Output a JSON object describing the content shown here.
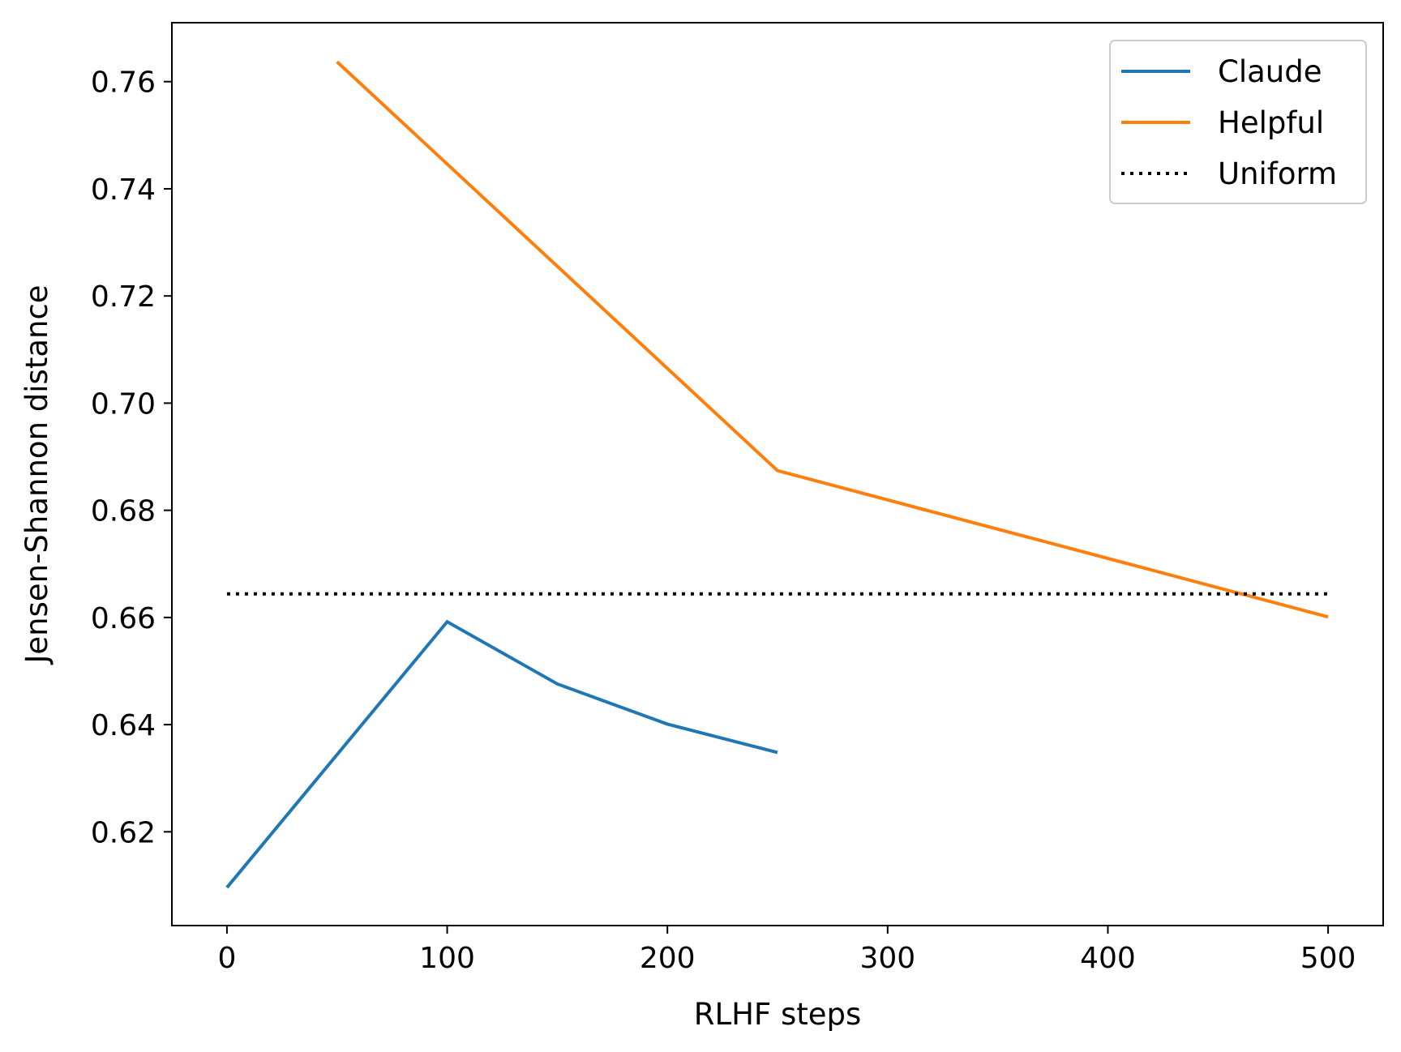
{
  "chart_data": {
    "type": "line",
    "title": "",
    "xlabel": "RLHF steps",
    "ylabel": "Jensen-Shannon distance",
    "xlim": [
      -25,
      525
    ],
    "ylim": [
      0.6025,
      0.771
    ],
    "xticks": [
      0,
      100,
      200,
      300,
      400,
      500
    ],
    "xtick_labels": [
      "0",
      "100",
      "200",
      "300",
      "400",
      "500"
    ],
    "yticks": [
      0.62,
      0.64,
      0.66,
      0.68,
      0.7,
      0.72,
      0.74,
      0.76
    ],
    "ytick_labels": [
      "0.62",
      "0.64",
      "0.66",
      "0.68",
      "0.70",
      "0.72",
      "0.74",
      "0.76"
    ],
    "grid": false,
    "legend_position": "top-right",
    "series": [
      {
        "name": "Claude",
        "color": "#1f77b4",
        "style": "solid",
        "x": [
          0,
          100,
          150,
          200,
          250
        ],
        "y": [
          0.6096,
          0.6592,
          0.6476,
          0.6401,
          0.6348
        ]
      },
      {
        "name": "Helpful",
        "color": "#ff7f0e",
        "style": "solid",
        "x": [
          50,
          250,
          500
        ],
        "y": [
          0.7637,
          0.6874,
          0.6601
        ]
      },
      {
        "name": "Uniform",
        "color": "#000000",
        "style": "dotted",
        "x": [
          0,
          500
        ],
        "y": [
          0.6644,
          0.6644
        ]
      }
    ]
  }
}
